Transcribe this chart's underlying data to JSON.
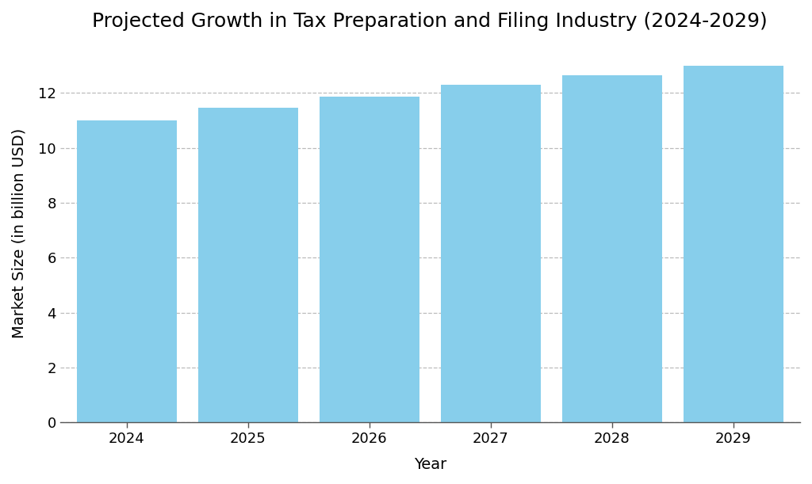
{
  "title": "Projected Growth in Tax Preparation and Filing Industry (2024-2029)",
  "xlabel": "Year",
  "ylabel": "Market Size (in billion USD)",
  "years": [
    2024,
    2025,
    2026,
    2027,
    2028,
    2029
  ],
  "values": [
    11.0,
    11.45,
    11.85,
    12.3,
    12.65,
    13.0
  ],
  "bar_color": "#87CEEB",
  "bar_edgecolor": "none",
  "background_color": "#ffffff",
  "ylim": [
    0,
    13.8
  ],
  "yticks": [
    0,
    2,
    4,
    6,
    8,
    10,
    12
  ],
  "grid_color": "#bbbbbb",
  "grid_linestyle": "--",
  "title_fontsize": 18,
  "label_fontsize": 14,
  "tick_fontsize": 13,
  "bar_width": 0.82
}
